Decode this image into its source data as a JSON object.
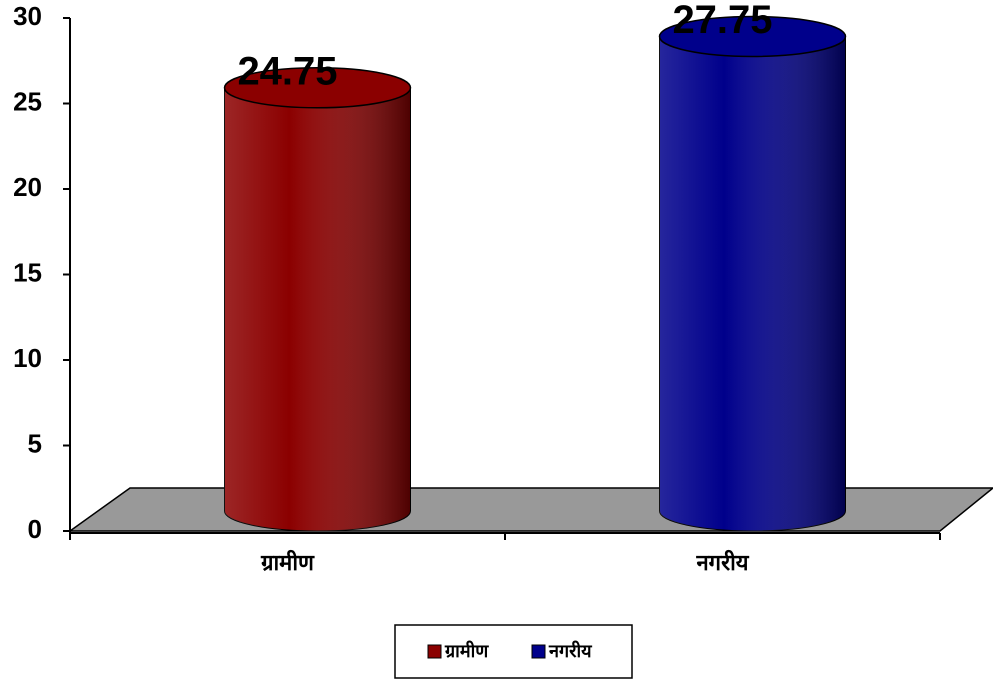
{
  "chart_data": {
    "type": "cylinder",
    "categories": [
      "ग्रामीण",
      "नगरीय"
    ],
    "values": [
      24.75,
      27.75
    ],
    "colors": [
      "#8b0000",
      "#00008b"
    ],
    "ylim": [
      0,
      30
    ],
    "yticks": [
      0,
      5,
      10,
      15,
      20,
      25,
      30
    ],
    "legend": "bottom"
  }
}
